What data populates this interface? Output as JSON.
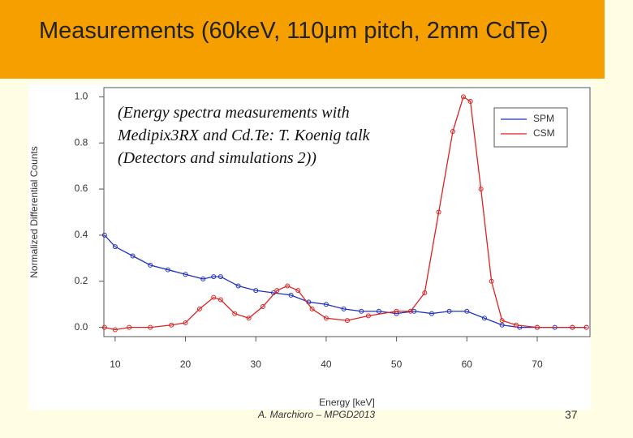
{
  "slide": {
    "title": "Measurements (60keV, 110μm pitch, 2mm CdTe)",
    "footer": "A. Marchioro – MPGD2013",
    "page_number": "37"
  },
  "chart_data": {
    "type": "line",
    "annotation": "(Energy spectra measurements with\nMedipix3RX and Cd.Te: T. Koenig talk\n(Detectors and simulations 2))",
    "x_label": "Energy [keV]",
    "y_label": "Normalized Differential Counts",
    "xlim": [
      8.4,
      77.5
    ],
    "ylim": [
      -0.04,
      1.04
    ],
    "xticks": [
      10,
      20,
      30,
      40,
      50,
      60,
      70
    ],
    "yticks": [
      {
        "value": 0,
        "label": "0.0"
      },
      {
        "value": 0.2,
        "label": "0.2"
      },
      {
        "value": 0.4,
        "label": "0.4"
      },
      {
        "value": 0.6,
        "label": "0.6"
      },
      {
        "value": 0.8,
        "label": "0.8"
      },
      {
        "value": 1,
        "label": "1.0"
      }
    ],
    "legend": "top-right",
    "series": [
      {
        "name": "SPM",
        "color": "#2233bb",
        "x": [
          8.5,
          10,
          12.5,
          15,
          17.5,
          20,
          22.5,
          24,
          25,
          27.5,
          30,
          32.5,
          35,
          37.5,
          40,
          42.5,
          45,
          47.5,
          50,
          52.5,
          55,
          57.5,
          60,
          62.5,
          65,
          67.5,
          70,
          72.5,
          75,
          77
        ],
        "values": [
          0.4,
          0.35,
          0.31,
          0.27,
          0.25,
          0.23,
          0.21,
          0.22,
          0.22,
          0.18,
          0.16,
          0.15,
          0.14,
          0.11,
          0.1,
          0.08,
          0.07,
          0.07,
          0.06,
          0.07,
          0.06,
          0.07,
          0.07,
          0.04,
          0.01,
          0,
          0,
          0,
          0,
          0
        ]
      },
      {
        "name": "CSM",
        "color": "#dd2222",
        "x": [
          8.5,
          10,
          12,
          15,
          18,
          20,
          22,
          24,
          25,
          27,
          29,
          31,
          33,
          34.5,
          36,
          38,
          40,
          43,
          46,
          50,
          52,
          54,
          56,
          58,
          59.5,
          60.5,
          62,
          63.5,
          65,
          67,
          70,
          75,
          77
        ],
        "values": [
          0,
          -0.01,
          0,
          0,
          0.01,
          0.02,
          0.08,
          0.13,
          0.12,
          0.06,
          0.04,
          0.09,
          0.16,
          0.18,
          0.16,
          0.08,
          0.04,
          0.03,
          0.05,
          0.07,
          0.07,
          0.15,
          0.5,
          0.85,
          1,
          0.98,
          0.6,
          0.2,
          0.03,
          0.01,
          0,
          0,
          0
        ]
      }
    ]
  }
}
